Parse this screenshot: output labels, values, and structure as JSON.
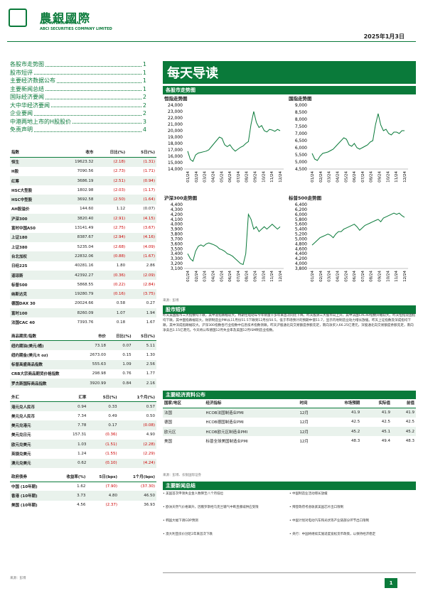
{
  "header": {
    "logo_cn": "農銀國際",
    "logo_en1": "ABC INTERNATIONAL",
    "logo_en2": "ABCI SECURITIES COMPANY LIMITED",
    "date": "2025年1月3日"
  },
  "toc": [
    {
      "label": "各股市走势图",
      "page": "1"
    },
    {
      "label": "股市短评",
      "page": "1"
    },
    {
      "label": "主要经济数据公布",
      "page": "1"
    },
    {
      "label": "主要新闻总结",
      "page": "1"
    },
    {
      "label": "国际经济要闻",
      "page": "2"
    },
    {
      "label": "大中华经济要闻",
      "page": "2"
    },
    {
      "label": "企业要闻",
      "page": "2"
    },
    {
      "label": "中港两地上市的H股股价",
      "page": "3"
    },
    {
      "label": "免责声明",
      "page": "4"
    }
  ],
  "title": "每天导读",
  "charts_section": "各股市走势图",
  "charts": [
    {
      "title": "恒指走势图",
      "chart_data": {
        "type": "line",
        "ylim": [
          14000,
          24000
        ],
        "yticks": [
          "24,000",
          "23,000",
          "22,000",
          "21,000",
          "20,000",
          "19,000",
          "18,000",
          "17,000",
          "16,000",
          "15,000",
          "14,000"
        ],
        "xticks": [
          "01/24",
          "02/24",
          "03/24",
          "04/24",
          "05/24",
          "06/24",
          "07/24",
          "08/24",
          "09/24",
          "10/24",
          "11/24",
          "12/24"
        ],
        "values": [
          16800,
          15500,
          15200,
          16200,
          16500,
          16600,
          16700,
          16800,
          17000,
          17500,
          18000,
          18500,
          19000,
          18800,
          17800,
          17500,
          17800,
          17200,
          16800,
          17100,
          17400,
          17600,
          18000,
          18300,
          21000,
          23000,
          21300,
          20500,
          20800,
          20000,
          19800,
          20200,
          20100,
          19900,
          20200,
          20000
        ]
      }
    },
    {
      "title": "国指走势图",
      "chart_data": {
        "type": "line",
        "ylim": [
          4500,
          9000
        ],
        "yticks": [
          "9,000",
          "8,500",
          "8,000",
          "7,500",
          "7,000",
          "6,500",
          "6,000",
          "5,500",
          "5,000",
          "4,500"
        ],
        "xticks": [
          "01/24",
          "02/24",
          "03/24",
          "04/24",
          "05/24",
          "06/24",
          "07/24",
          "08/24",
          "09/24",
          "10/24",
          "11/24",
          "12/24"
        ],
        "values": [
          5600,
          5200,
          5100,
          5400,
          5600,
          5650,
          5700,
          5800,
          5900,
          6100,
          6300,
          6500,
          6700,
          6600,
          6200,
          6100,
          6300,
          6000,
          5900,
          6000,
          6100,
          6200,
          6400,
          6500,
          7600,
          8400,
          7600,
          7200,
          7300,
          7000,
          6900,
          7100,
          7100,
          7000,
          7200,
          7200
        ]
      }
    },
    {
      "title": "沪深300走势图",
      "chart_data": {
        "type": "line",
        "ylim": [
          3100,
          4400
        ],
        "yticks": [
          "4,400",
          "4,300",
          "4,200",
          "4,100",
          "4,000",
          "3,900",
          "3,800",
          "3,700",
          "3,600",
          "3,500",
          "3,400",
          "3,300",
          "3,200",
          "3,100"
        ],
        "xticks": [
          "01/24",
          "02/24",
          "03/24",
          "04/24",
          "05/24",
          "06/24",
          "07/24",
          "08/24",
          "09/24",
          "10/24",
          "11/24",
          "12/24"
        ],
        "values": [
          3400,
          3300,
          3250,
          3450,
          3550,
          3580,
          3550,
          3600,
          3620,
          3600,
          3580,
          3550,
          3500,
          3480,
          3450,
          3400,
          3380,
          3350,
          3300,
          3250,
          3200,
          3180,
          3400,
          4200,
          4100,
          3900,
          3950,
          3850,
          3900,
          3950,
          3900,
          3950,
          4000,
          3950,
          3900,
          3950
        ]
      }
    },
    {
      "title": "标普500走势图",
      "chart_data": {
        "type": "line",
        "ylim": [
          3800,
          6400
        ],
        "yticks": [
          "6,400",
          "6,200",
          "6,000",
          "5,800",
          "5,600",
          "5,400",
          "5,200",
          "5,000",
          "4,800",
          "4,600",
          "4,400",
          "4,200",
          "4,000",
          "3,800"
        ],
        "xticks": [
          "01/24",
          "02/24",
          "03/24",
          "04/24",
          "05/24",
          "06/24",
          "07/24",
          "08/24",
          "09/24",
          "10/24",
          "11/24",
          "12/24"
        ],
        "values": [
          4750,
          4850,
          4950,
          5050,
          5100,
          5150,
          5200,
          5150,
          5050,
          5200,
          5300,
          5300,
          5400,
          5450,
          5500,
          5550,
          5600,
          5500,
          5350,
          5450,
          5550,
          5600,
          5650,
          5700,
          5750,
          5800,
          5700,
          5850,
          5900,
          5950,
          6000,
          6050,
          6000,
          6050,
          5950,
          5880
        ]
      }
    }
  ],
  "charts_source": "来源：彭博",
  "commentary_title": "股市短评",
  "commentary": "昨天美国股市三大指数均下跌，其中道指跌幅较大。特斯拉电动车今年销量十多年来首次同比下降。昨天股洲三大股市向上升，其中法国CAC40指数升幅较大。昨天恒指及国指均下跌，其中国指跌幅较大。财新制造业PMI从11月份51.5下跌到12月份50.5，低于市场预计的预期中值51.7，显示内地制造业动力增长放缓。昨天上证指数及深成指均下跌，其中深成指跌幅较大。沪深300指数各行业指数中信息技术指数领跌。昨天沪股通北向交易额度余额充足，南向净买入66.25亿港元，深股通北向交易额度余额充足，南向净卖出1.15亿港元。今天将公布德国12月失业率及美国12月ISM制造业指数。",
  "indices": {
    "headers": [
      "指数",
      "收市",
      "日比(%)",
      "5日(%)"
    ],
    "rows": [
      {
        "name": "恒生",
        "close": "19623.32",
        "d": "(2.18)",
        "w": "(1.31)",
        "neg": true,
        "g": true
      },
      {
        "name": "H股",
        "close": "7090.56",
        "d": "(2.73)",
        "w": "(1.71)",
        "neg": true
      },
      {
        "name": "红筹",
        "close": "3686.19",
        "d": "(2.51)",
        "w": "(0.94)",
        "neg": true,
        "g": true
      },
      {
        "name": "HSC大型股",
        "close": "1802.98",
        "d": "(2.03)",
        "w": "(1.17)",
        "neg": true
      },
      {
        "name": "HSC中型股",
        "close": "3692.58",
        "d": "(2.50)",
        "w": "(1.64)",
        "neg": true,
        "g": true
      },
      {
        "name": "AH股溢价",
        "close": "144.60",
        "d": "1.12",
        "w": "(0.07)"
      },
      {
        "name": "沪深300",
        "close": "3820.40",
        "d": "(2.91)",
        "w": "(4.15)",
        "neg": true,
        "g": true
      },
      {
        "name": "富时中国A50",
        "close": "13141.49",
        "d": "(2.75)",
        "w": "(3.67)",
        "neg": true
      },
      {
        "name": "上证180",
        "close": "8387.67",
        "d": "(2.94)",
        "w": "(4.16)",
        "neg": true,
        "g": true
      },
      {
        "name": "上证380",
        "close": "5235.04",
        "d": "(2.68)",
        "w": "(4.09)",
        "neg": true
      },
      {
        "name": "台北加权",
        "close": "22832.06",
        "d": "(0.88)",
        "w": "(1.67)",
        "neg": true,
        "g": true
      },
      {
        "name": "日经225",
        "close": "40281.16",
        "d": "1.80",
        "w": "2.86"
      },
      {
        "name": "道琼斯",
        "close": "42392.27",
        "d": "(0.36)",
        "w": "(2.09)",
        "neg": true,
        "g": true
      },
      {
        "name": "标普500",
        "close": "5868.55",
        "d": "(0.22)",
        "w": "(2.84)",
        "neg": true
      },
      {
        "name": "纳斯达克",
        "close": "19280.79",
        "d": "(0.16)",
        "w": "(3.75)",
        "neg": true,
        "g": true
      },
      {
        "name": "德国DAX 30",
        "close": "20024.66",
        "d": "0.58",
        "w": "0.27"
      },
      {
        "name": "富时100",
        "close": "8260.09",
        "d": "1.07",
        "w": "1.94",
        "g": true
      },
      {
        "name": "法国CAC 40",
        "close": "7393.76",
        "d": "0.18",
        "w": "1.67"
      }
    ]
  },
  "commodities": {
    "headers": [
      "商品期货/指数",
      "市价",
      "日比(%)",
      "5日(%)"
    ],
    "rows": [
      {
        "name": "纽约期油(美元/桶)",
        "close": "73.18",
        "d": "0.07",
        "w": "5.11",
        "g": true
      },
      {
        "name": "纽约期金(美元/t oz)",
        "close": "2673.00",
        "d": "0.15",
        "w": "1.30"
      },
      {
        "name": "标普高盛商品指数",
        "close": "555.63",
        "d": "1.09",
        "w": "2.56",
        "g": true
      },
      {
        "name": "CRB大宗商品期货价格指数",
        "close": "298.98",
        "d": "0.76",
        "w": "1.77"
      },
      {
        "name": "罗杰斯国际商品指数",
        "close": "3920.99",
        "d": "0.84",
        "w": "2.16",
        "g": true
      }
    ]
  },
  "fx": {
    "headers": [
      "外汇",
      "汇率",
      "5日(%)",
      "1个月(%)"
    ],
    "rows": [
      {
        "name": "港元兑人民币",
        "close": "0.94",
        "d": "0.33",
        "w": "0.57",
        "g": true
      },
      {
        "name": "美元兑人民币",
        "close": "7.34",
        "d": "0.49",
        "w": "0.50"
      },
      {
        "name": "美元兑港元",
        "close": "7.78",
        "d": "0.17",
        "w": "(0.08)",
        "wneg": true,
        "g": true
      },
      {
        "name": "美元兑日元",
        "close": "157.31",
        "d": "(0.36)",
        "w": "4.90",
        "dneg": true
      },
      {
        "name": "欧元兑美元",
        "close": "1.03",
        "d": "(1.51)",
        "w": "(2.28)",
        "dneg": true,
        "wneg": true,
        "g": true
      },
      {
        "name": "英镑兑美元",
        "close": "1.24",
        "d": "(1.55)",
        "w": "(2.29)",
        "dneg": true,
        "wneg": true
      },
      {
        "name": "澳元兑美元",
        "close": "0.62",
        "d": "(0.10)",
        "w": "(4.24)",
        "dneg": true,
        "wneg": true,
        "g": true
      }
    ]
  },
  "bonds": {
    "headers": [
      "政府债券",
      "收益率(%)",
      "5日(bps)",
      "1个月(bps)"
    ],
    "rows": [
      {
        "name": "中国 (10年期)",
        "close": "1.62",
        "d": "(7.90)",
        "w": "(37.30)",
        "dneg": true,
        "wneg": true
      },
      {
        "name": "香港 (10年期)",
        "close": "3.73",
        "d": "4.80",
        "w": "46.50",
        "g": true
      },
      {
        "name": "美国 (10年期)",
        "close": "4.56",
        "d": "(2.37)",
        "w": "36.93",
        "dneg": true
      }
    ]
  },
  "left_source": "来源：彭博",
  "econ": {
    "title": "主要经济资料公布",
    "headers": [
      "国家/地区",
      "经济指标",
      "时间",
      "市场预期",
      "实际值",
      "前值"
    ],
    "rows": [
      {
        "c": "法国",
        "i": "HCOB法国制造业PMI",
        "t": "12月",
        "e": "41.9",
        "a": "41.9",
        "p": "41.9"
      },
      {
        "c": "德国",
        "i": "HCOB德国制造业PMI",
        "t": "12月",
        "e": "42.5",
        "a": "42.5",
        "p": "42.5"
      },
      {
        "c": "欧元区",
        "i": "HCOB欧元区制造业PMI",
        "t": "12月",
        "e": "45.2",
        "a": "45.1",
        "p": "45.2"
      },
      {
        "c": "美国",
        "i": "标普全球美国制造业PMI",
        "t": "12月",
        "e": "48.3",
        "a": "49.4",
        "p": "48.3"
      }
    ],
    "source": "来源：彭博、农银国际证券"
  },
  "news": {
    "title": "主要新闻总结",
    "left": [
      "美国首次申领失业金人数降至八个月低位",
      "欧洲天然气价格飙升，因俄罗斯经乌克兰输气中断且挪威供应受限",
      "韩国大幅下调GDP预测",
      "澳大利亚房价创近2年来首次下跌"
    ],
    "right": [
      "中国制造业活动增长放缓",
      "拜登政府考虑收紧美国芯片出口限制",
      "中国计划对电动汽车和光伏等产业链部分环节出口限制",
      "央行：中国将继续实施适度宽松货币政策，以保持经济稳定"
    ]
  },
  "page_num": "1"
}
